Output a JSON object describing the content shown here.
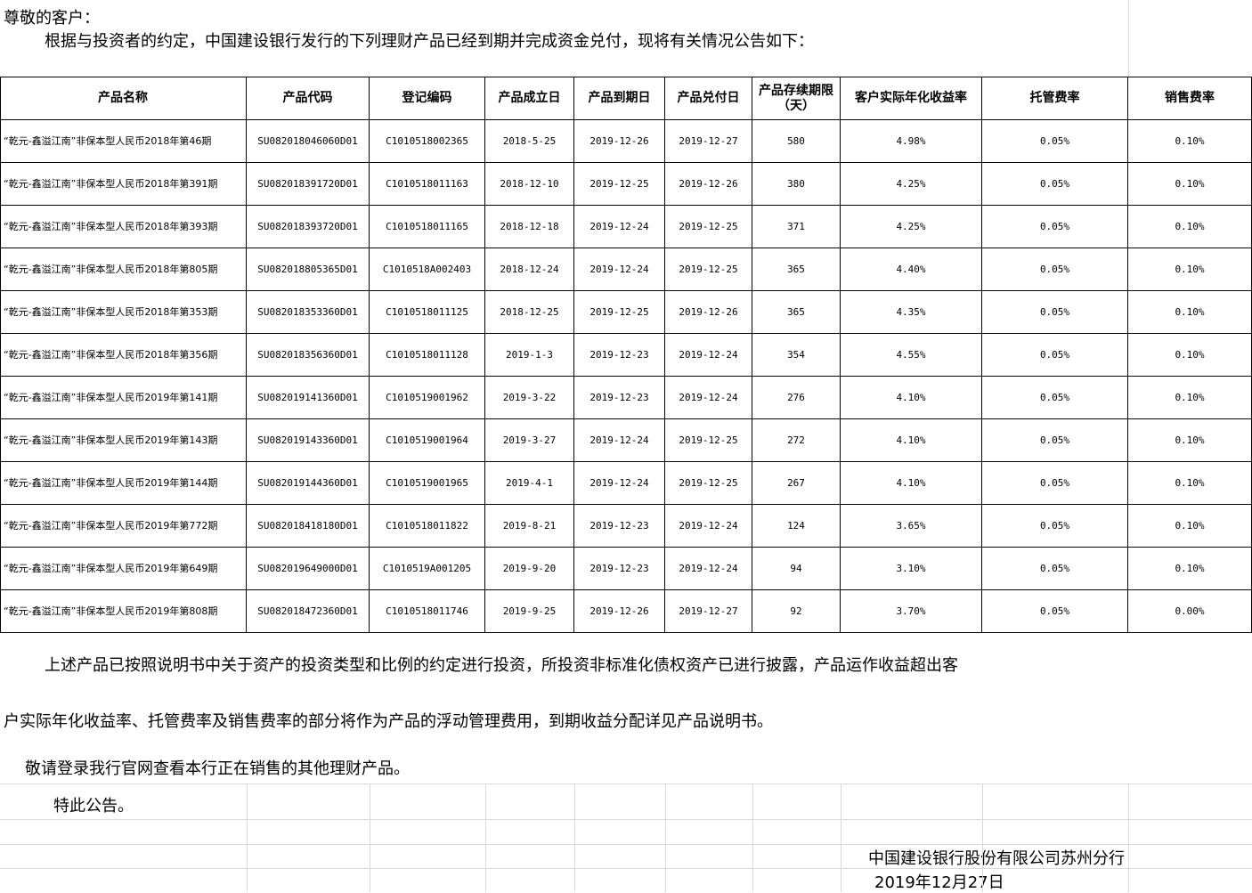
{
  "notice": {
    "greeting": "尊敬的客户：",
    "intro": "根据与投资者的约定，中国建设银行发行的下列理财产品已经到期并完成资金兑付，现将有关情况公告如下：",
    "table": {
      "headers": [
        "产品名称",
        "产品代码",
        "登记编码",
        "产品成立日",
        "产品到期日",
        "产品兑付日",
        "产品存续期限（天）",
        "客户实际年化收益率",
        "托管费率",
        "销售费率"
      ],
      "rows": [
        [
          "“乾元-鑫溢江南”非保本型人民币2018年第46期",
          "SU082018046060D01",
          "C1010518002365",
          "2018-5-25",
          "2019-12-26",
          "2019-12-27",
          580,
          "4.98%",
          "0.05%",
          "0.10%"
        ],
        [
          "“乾元-鑫溢江南”非保本型人民币2018年第391期",
          "SU082018391720D01",
          "C1010518011163",
          "2018-12-10",
          "2019-12-25",
          "2019-12-26",
          380,
          "4.25%",
          "0.05%",
          "0.10%"
        ],
        [
          "“乾元-鑫溢江南”非保本型人民币2018年第393期",
          "SU082018393720D01",
          "C1010518011165",
          "2018-12-18",
          "2019-12-24",
          "2019-12-25",
          371,
          "4.25%",
          "0.05%",
          "0.10%"
        ],
        [
          "“乾元-鑫溢江南”非保本型人民币2018年第805期",
          "SU082018805365D01",
          "C1010518A002403",
          "2018-12-24",
          "2019-12-24",
          "2019-12-25",
          365,
          "4.40%",
          "0.05%",
          "0.10%"
        ],
        [
          "“乾元-鑫溢江南”非保本型人民币2018年第353期",
          "SU082018353360D01",
          "C1010518011125",
          "2018-12-25",
          "2019-12-25",
          "2019-12-26",
          365,
          "4.35%",
          "0.05%",
          "0.10%"
        ],
        [
          "“乾元-鑫溢江南”非保本型人民币2018年第356期",
          "SU082018356360D01",
          "C1010518011128",
          "2019-1-3",
          "2019-12-23",
          "2019-12-24",
          354,
          "4.55%",
          "0.05%",
          "0.10%"
        ],
        [
          "“乾元-鑫溢江南”非保本型人民币2019年第141期",
          "SU082019141360D01",
          "C1010519001962",
          "2019-3-22",
          "2019-12-23",
          "2019-12-24",
          276,
          "4.10%",
          "0.05%",
          "0.10%"
        ],
        [
          "“乾元-鑫溢江南”非保本型人民币2019年第143期",
          "SU082019143360D01",
          "C1010519001964",
          "2019-3-27",
          "2019-12-24",
          "2019-12-25",
          272,
          "4.10%",
          "0.05%",
          "0.10%"
        ],
        [
          "“乾元-鑫溢江南”非保本型人民币2019年第144期",
          "SU082019144360D01",
          "C1010519001965",
          "2019-4-1",
          "2019-12-24",
          "2019-12-25",
          267,
          "4.10%",
          "0.05%",
          "0.10%"
        ],
        [
          "“乾元-鑫溢江南”非保本型人民币2019年第772期",
          "SU082018418180D01",
          "C1010518011822",
          "2019-8-21",
          "2019-12-23",
          "2019-12-24",
          124,
          "3.65%",
          "0.05%",
          "0.10%"
        ],
        [
          "“乾元-鑫溢江南”非保本型人民币2019年第649期",
          "SU082019649000D01",
          "C1010519A001205",
          "2019-9-20",
          "2019-12-23",
          "2019-12-24",
          94,
          "3.10%",
          "0.05%",
          "0.10%"
        ],
        [
          "“乾元-鑫溢江南”非保本型人民币2019年第808期",
          "SU082018472360D01",
          "C1010518011746",
          "2019-9-25",
          "2019-12-26",
          "2019-12-27",
          92,
          "3.70%",
          "0.05%",
          "0.00%"
        ]
      ]
    },
    "paragraph_lines": [
      "上述产品已按照说明书中关于资产的投资类型和比例的约定进行投资，所投资非标准化债权资产已进行披露，产品运作收益超出客",
      "户实际年化收益率、托管费率及销售费率的部分将作为产品的浮动管理费用，到期收益分配详见产品说明书。"
    ],
    "recommendation": "敬请登录我行官网查看本行正在销售的其他理财产品。",
    "closing": "特此公告。",
    "signature": "中国建设银行股份有限公司苏州分行",
    "date": "2019年12月27日"
  }
}
